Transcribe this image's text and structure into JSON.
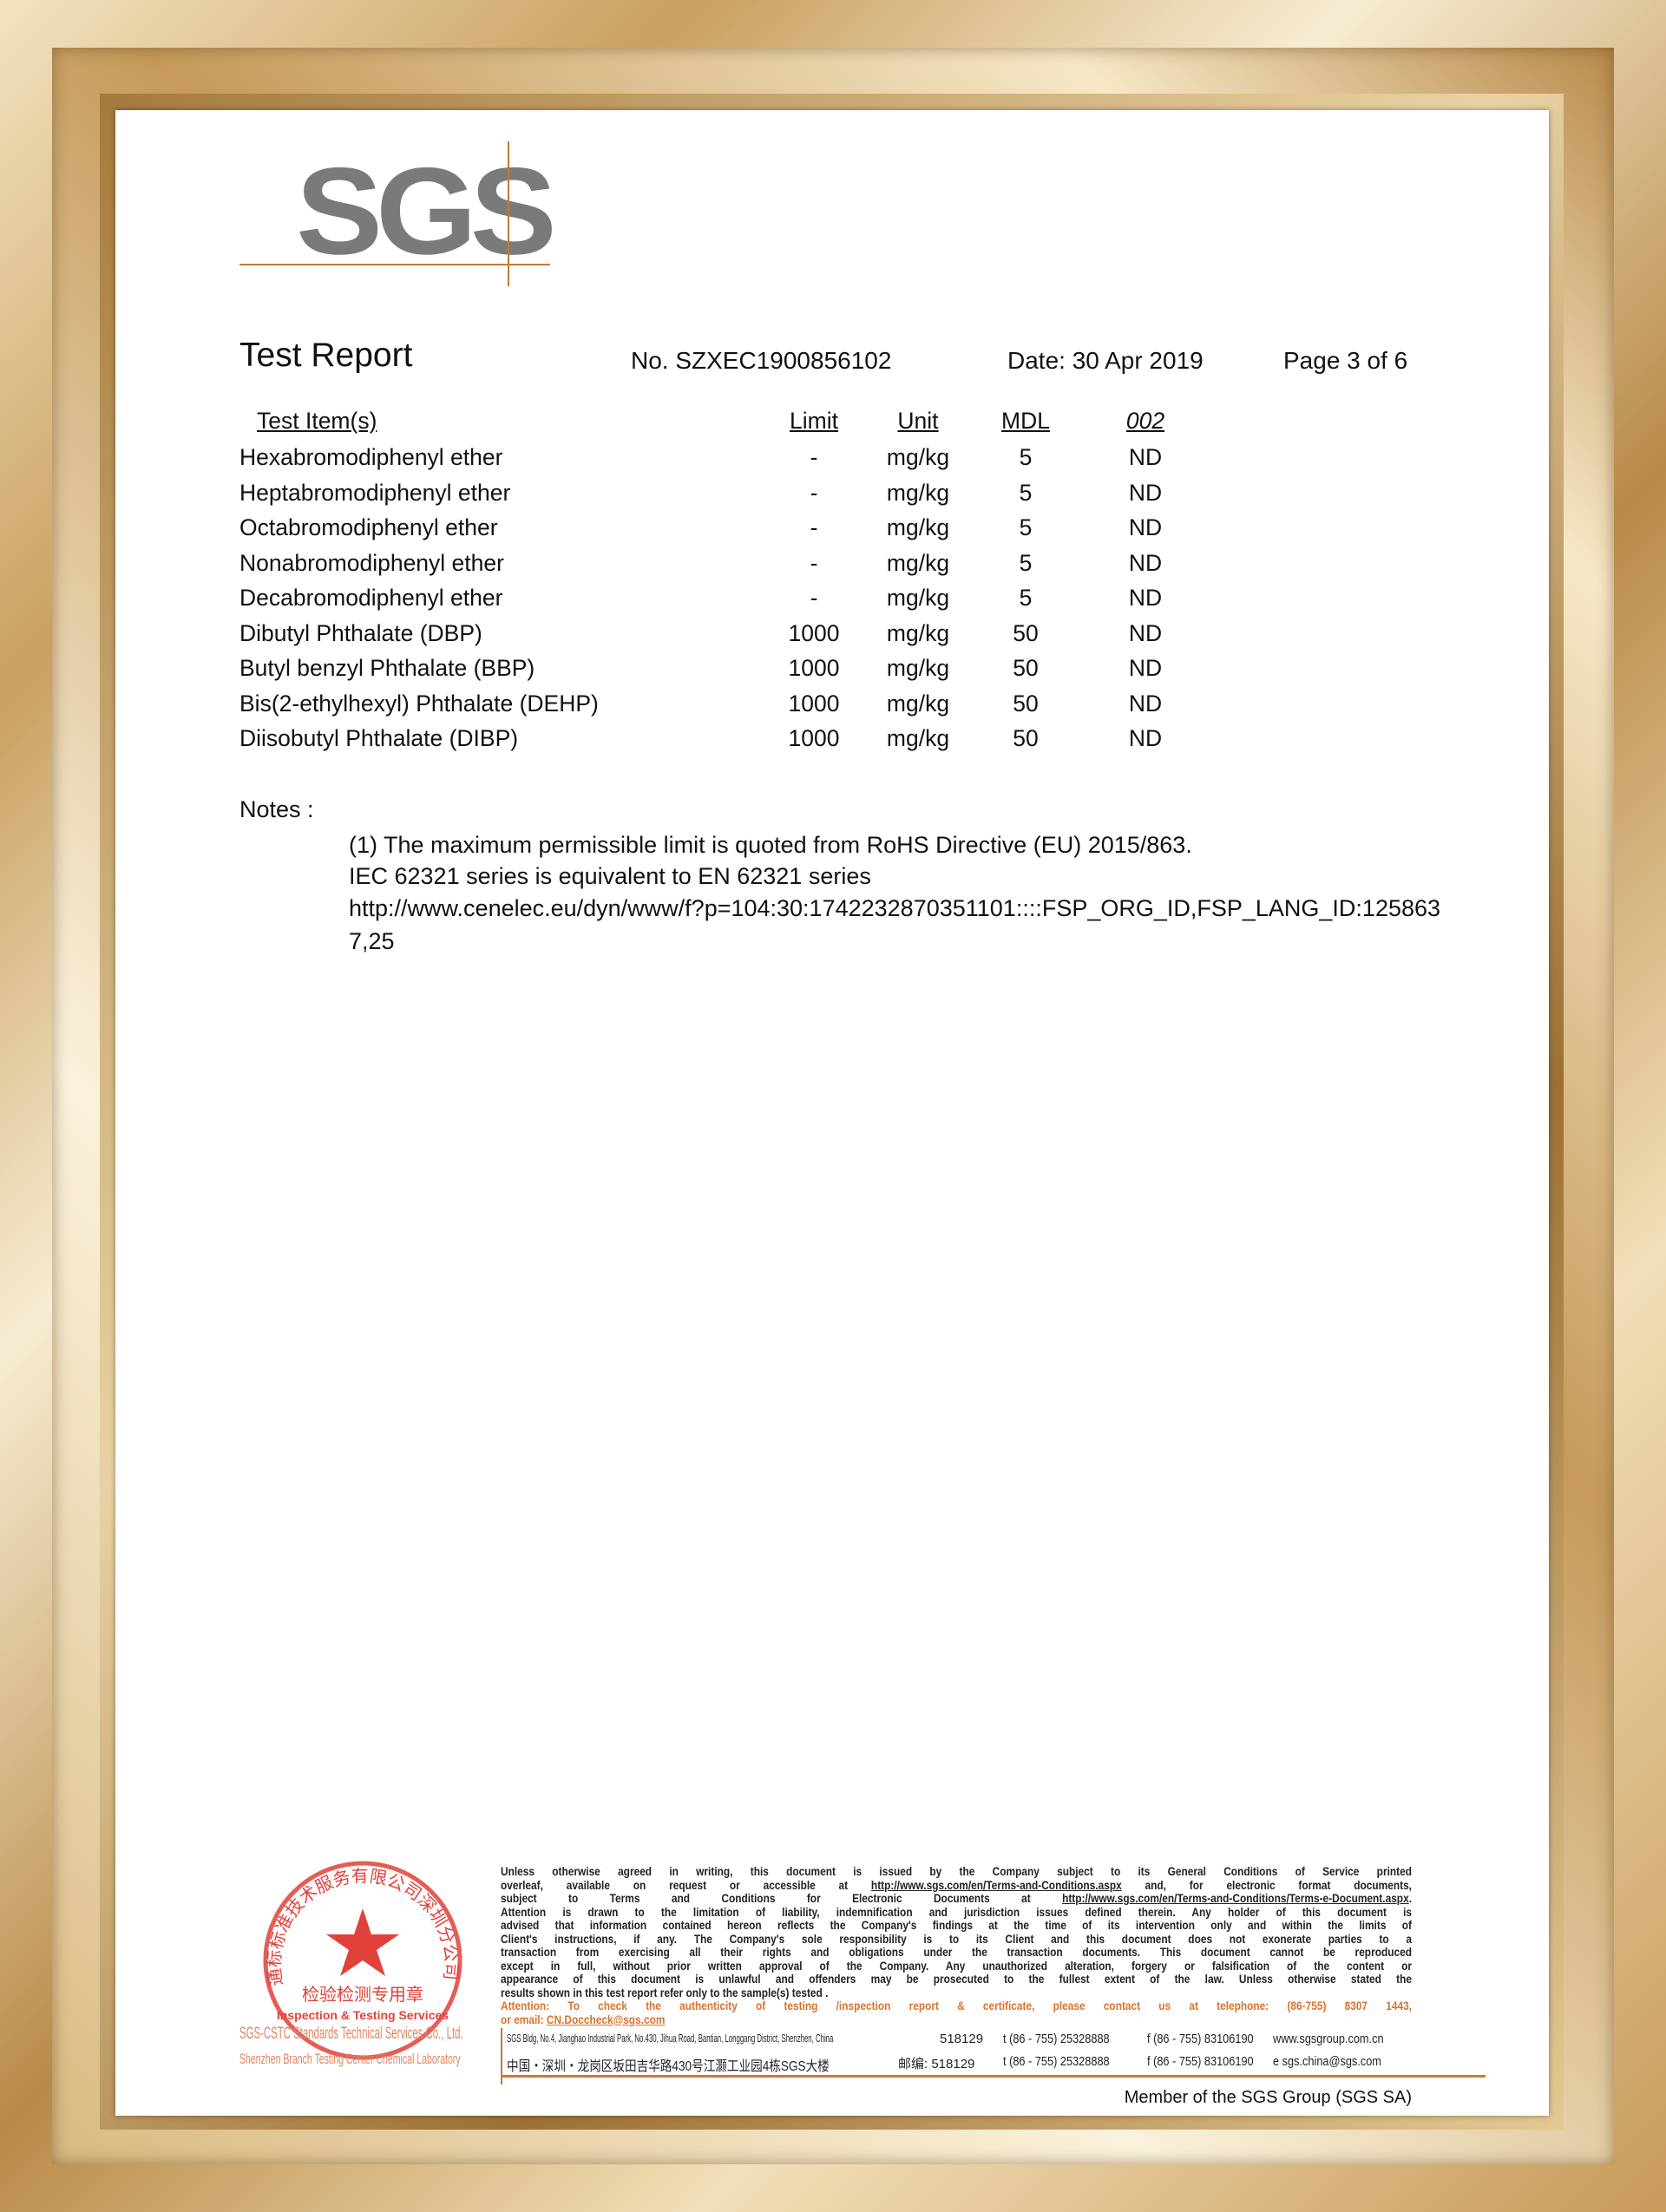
{
  "logo": "SGS",
  "header": {
    "title": "Test Report",
    "number": "No. SZXEC1900856102",
    "date": "Date: 30 Apr 2019",
    "page": "Page 3 of 6"
  },
  "table": {
    "columns": [
      "Test Item(s)",
      "Limit",
      "Unit",
      "MDL",
      "002"
    ],
    "rows": [
      [
        "Hexabromodiphenyl ether",
        "-",
        "mg/kg",
        "5",
        "ND"
      ],
      [
        "Heptabromodiphenyl ether",
        "-",
        "mg/kg",
        "5",
        "ND"
      ],
      [
        "Octabromodiphenyl ether",
        "-",
        "mg/kg",
        "5",
        "ND"
      ],
      [
        "Nonabromodiphenyl ether",
        "-",
        "mg/kg",
        "5",
        "ND"
      ],
      [
        "Decabromodiphenyl ether",
        "-",
        "mg/kg",
        "5",
        "ND"
      ],
      [
        "Dibutyl Phthalate (DBP)",
        "1000",
        "mg/kg",
        "50",
        "ND"
      ],
      [
        "Butyl benzyl Phthalate (BBP)",
        "1000",
        "mg/kg",
        "50",
        "ND"
      ],
      [
        "Bis(2-ethylhexyl) Phthalate (DEHP)",
        "1000",
        "mg/kg",
        "50",
        "ND"
      ],
      [
        "Diisobutyl Phthalate (DIBP)",
        "1000",
        "mg/kg",
        "50",
        "ND"
      ]
    ]
  },
  "notes": {
    "label": "Notes :",
    "lines": [
      "(1) The maximum permissible limit is quoted from RoHS Directive (EU) 2015/863.",
      "IEC 62321 series is equivalent to EN 62321 series",
      "http://www.cenelec.eu/dyn/www/f?p=104:30:1742232870351101::::FSP_ORG_ID,FSP_LANG_ID:125863",
      "7,25"
    ]
  },
  "footer": {
    "disclaimer": [
      "Unless otherwise agreed in writing, this document is issued by the Company subject to its General Conditions of Service printed",
      "overleaf, available on request or accessible at ",
      "http://www.sgs.com/en/Terms-and-Conditions.aspx",
      " and, for electronic format documents,",
      "subject to Terms and Conditions for Electronic Documents at ",
      "http://www.sgs.com/en/Terms-and-Conditions/Terms-e-Document.aspx",
      ".",
      "Attention is drawn to the limitation of liability, indemnification and jurisdiction issues defined therein. Any holder of this document is",
      "advised that information contained hereon reflects the Company's findings at the time of its intervention only and within the limits of",
      "Client's instructions, if any. The Company's sole responsibility is to its Client and this document does not exonerate parties to a",
      "transaction from exercising all their rights and obligations under the transaction documents. This document cannot be reproduced",
      "except in full, without prior written approval of the Company. Any unauthorized alteration, forgery or falsification of the content or",
      "appearance of this document is unlawful and offenders may be prosecuted to the fullest extent of the law. Unless otherwise stated the",
      "results shown in this test report refer only to the sample(s) tested ."
    ],
    "attention_1": "Attention: To check the authenticity of testing /inspection report & certificate, please contact us at telephone: (86-755) 8307 1443,",
    "attention_2_prefix": "or email: ",
    "attention_email": "CN.Doccheck@sgs.com",
    "address_en": "SGS Bldg, No.4, Jianghao Industrial Park, No.430, Jihua Road, Bantian, Longgang District, Shenzhen, China",
    "address_cn": "中国・深圳・龙岗区坂田吉华路430号江灏工业园4栋SGS大楼",
    "postcode_en": "518129",
    "postcode_cn": "邮编: 518129",
    "tel": "t (86 - 755) 25328888",
    "fax": "f (86 - 755) 83106190",
    "web": "www.sgsgroup.com.cn",
    "email": "e  sgs.china@sgs.com",
    "member": "Member of the SGS Group (SGS SA)"
  },
  "stamp": {
    "ring_text": "通标标准技术服务有限公司深圳分公司",
    "center_cn": "检验检测专用章",
    "center_en": "Inspection & Testing Services",
    "company_line1": "SGS-CSTC Standards Technical Services Co., Ltd.",
    "company_line2": "Shenzhen Branch Testing Center Chemical Laboratory",
    "color": "#e0413a"
  },
  "colors": {
    "accent": "#d8742f",
    "logo": "#7a7a7a"
  }
}
